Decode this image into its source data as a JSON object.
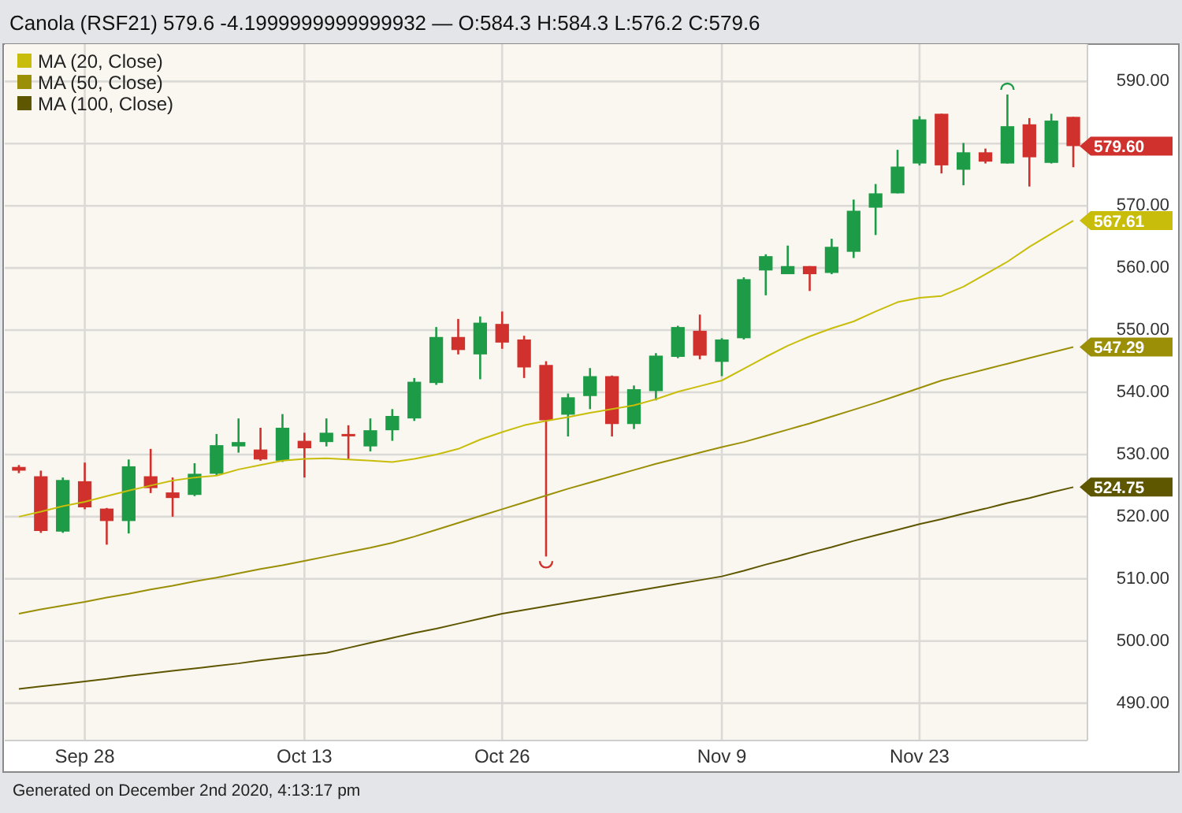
{
  "chart_data": {
    "type": "candlestick",
    "title": "Canola (RSF21) 579.6 -4.1999999999999932 — O:584.3 H:584.3 L:576.2 C:579.6",
    "categories": [
      null,
      null,
      null,
      "Sep 28",
      null,
      null,
      null,
      null,
      null,
      null,
      null,
      null,
      null,
      "Oct 13",
      null,
      null,
      null,
      null,
      null,
      null,
      null,
      null,
      "Oct 26",
      null,
      null,
      null,
      null,
      null,
      null,
      null,
      null,
      null,
      "Nov 9",
      null,
      null,
      null,
      null,
      null,
      null,
      null,
      null,
      "Nov 23",
      null,
      null,
      null,
      null,
      null,
      null,
      null
    ],
    "ohlc": [
      [
        528.0,
        528.3,
        527.0,
        527.4
      ],
      [
        526.5,
        527.4,
        517.4,
        517.7
      ],
      [
        517.6,
        526.3,
        517.4,
        525.9
      ],
      [
        525.7,
        528.7,
        521.2,
        521.5
      ],
      [
        521.3,
        521.4,
        515.5,
        519.3
      ],
      [
        519.3,
        529.2,
        517.3,
        528.1
      ],
      [
        526.5,
        530.9,
        523.8,
        524.6
      ],
      [
        523.9,
        526.3,
        520.0,
        523.0
      ],
      [
        523.5,
        528.6,
        523.3,
        526.9
      ],
      [
        526.9,
        533.3,
        526.7,
        531.5
      ],
      [
        531.3,
        535.8,
        530.3,
        532.0
      ],
      [
        530.8,
        534.3,
        529.0,
        529.2
      ],
      [
        529.0,
        536.5,
        528.8,
        534.3
      ],
      [
        532.2,
        533.5,
        526.3,
        531.0
      ],
      [
        532.0,
        535.8,
        531.3,
        533.5
      ],
      [
        533.3,
        534.7,
        529.2,
        533.0
      ],
      [
        531.3,
        535.8,
        530.5,
        533.9
      ],
      [
        533.9,
        537.3,
        532.2,
        536.2
      ],
      [
        535.8,
        542.3,
        535.4,
        541.7
      ],
      [
        541.5,
        550.5,
        541.2,
        548.9
      ],
      [
        548.9,
        551.8,
        546.1,
        546.8
      ],
      [
        546.1,
        552.2,
        542.1,
        551.2
      ],
      [
        551.0,
        553.0,
        547.0,
        548.0
      ],
      [
        548.5,
        549.1,
        542.3,
        544.0
      ],
      [
        544.4,
        545.0,
        513.6,
        535.5
      ],
      [
        536.4,
        539.8,
        532.9,
        539.2
      ],
      [
        539.4,
        543.9,
        537.3,
        542.6
      ],
      [
        542.6,
        542.7,
        532.9,
        534.9
      ],
      [
        534.9,
        541.1,
        534.1,
        540.5
      ],
      [
        540.2,
        546.3,
        538.7,
        545.9
      ],
      [
        545.7,
        550.7,
        545.5,
        550.5
      ],
      [
        549.9,
        552.5,
        545.3,
        545.9
      ],
      [
        544.9,
        548.7,
        542.6,
        548.5
      ],
      [
        548.7,
        558.5,
        548.5,
        558.2
      ],
      [
        559.6,
        562.2,
        555.6,
        561.9
      ],
      [
        559.0,
        563.6,
        559.0,
        560.3
      ],
      [
        560.3,
        560.3,
        556.3,
        559.0
      ],
      [
        559.2,
        564.7,
        559.0,
        563.4
      ],
      [
        562.6,
        571.0,
        561.6,
        569.2
      ],
      [
        569.7,
        573.5,
        565.3,
        572.0
      ],
      [
        572.0,
        579.0,
        572.0,
        576.3
      ],
      [
        576.8,
        584.4,
        576.5,
        583.9
      ],
      [
        584.8,
        584.8,
        575.2,
        576.5
      ],
      [
        575.8,
        580.1,
        573.3,
        578.6
      ],
      [
        578.6,
        579.2,
        576.8,
        577.1
      ],
      [
        576.8,
        587.9,
        576.8,
        582.8
      ],
      [
        583.1,
        584.1,
        573.1,
        577.8
      ],
      [
        576.9,
        584.8,
        576.8,
        583.7
      ],
      [
        584.3,
        584.3,
        576.2,
        579.6
      ]
    ],
    "value_labels": [
      null,
      null,
      null,
      null,
      null,
      null,
      null,
      null,
      null,
      null,
      null,
      null,
      null,
      null,
      null,
      null,
      null,
      null,
      null,
      null,
      null,
      null,
      null,
      null,
      null,
      null,
      null,
      null,
      null,
      null,
      null,
      null,
      null,
      null,
      null,
      null,
      null,
      null,
      null,
      null,
      null,
      null,
      null,
      null,
      null,
      null,
      null,
      null,
      "579.60"
    ],
    "colors": [
      "#d0312d",
      "#d0312d",
      "#1e9b46",
      "#d0312d",
      "#d0312d",
      "#1e9b46",
      "#d0312d",
      "#d0312d",
      "#1e9b46",
      "#1e9b46",
      "#1e9b46",
      "#d0312d",
      "#1e9b46",
      "#d0312d",
      "#1e9b46",
      "#d0312d",
      "#1e9b46",
      "#1e9b46",
      "#1e9b46",
      "#1e9b46",
      "#d0312d",
      "#1e9b46",
      "#d0312d",
      "#d0312d",
      "#d0312d",
      "#1e9b46",
      "#1e9b46",
      "#d0312d",
      "#1e9b46",
      "#1e9b46",
      "#1e9b46",
      "#d0312d",
      "#1e9b46",
      "#1e9b46",
      "#1e9b46",
      "#1e9b46",
      "#d0312d",
      "#1e9b46",
      "#1e9b46",
      "#1e9b46",
      "#1e9b46",
      "#1e9b46",
      "#d0312d",
      "#1e9b46",
      "#d0312d",
      "#1e9b46",
      "#d0312d",
      "#1e9b46",
      "#d0312d"
    ],
    "series": [
      {
        "type": "line",
        "name": "MA (20, Close)",
        "color": "#c8bd0a",
        "values": [
          520.0,
          520.8,
          521.7,
          522.4,
          523.3,
          524.2,
          525.0,
          525.8,
          526.3,
          526.6,
          527.6,
          528.3,
          529.0,
          529.3,
          529.4,
          529.2,
          529.0,
          528.8,
          529.3,
          530.0,
          530.9,
          532.4,
          533.6,
          534.7,
          535.4,
          536.0,
          536.7,
          537.3,
          537.9,
          538.9,
          540.1,
          541.0,
          541.9,
          543.8,
          545.7,
          547.5,
          549.0,
          550.3,
          551.4,
          553.0,
          554.5,
          555.2,
          555.5,
          557.0,
          559.0,
          561.0,
          563.4,
          565.5,
          567.61
        ],
        "value_labels": [
          null,
          null,
          null,
          null,
          null,
          null,
          null,
          null,
          null,
          null,
          null,
          null,
          null,
          null,
          null,
          null,
          null,
          null,
          null,
          null,
          null,
          null,
          null,
          null,
          null,
          null,
          null,
          null,
          null,
          null,
          null,
          null,
          null,
          null,
          null,
          null,
          null,
          null,
          null,
          null,
          null,
          null,
          null,
          null,
          null,
          null,
          null,
          null,
          "567.61"
        ]
      },
      {
        "type": "line",
        "name": "MA (50, Close)",
        "color": "#9a8f06",
        "values": [
          504.4,
          505.1,
          505.7,
          506.3,
          507.0,
          507.6,
          508.3,
          508.9,
          509.6,
          510.2,
          510.9,
          511.6,
          512.2,
          512.9,
          513.6,
          514.3,
          515.0,
          515.8,
          516.8,
          517.9,
          519.0,
          520.1,
          521.2,
          522.3,
          523.4,
          524.5,
          525.5,
          526.5,
          527.5,
          528.5,
          529.4,
          530.3,
          531.2,
          532.0,
          533.0,
          534.0,
          535.0,
          536.1,
          537.2,
          538.3,
          539.5,
          540.7,
          541.9,
          542.8,
          543.7,
          544.6,
          545.5,
          546.4,
          547.29
        ],
        "value_labels": [
          null,
          null,
          null,
          null,
          null,
          null,
          null,
          null,
          null,
          null,
          null,
          null,
          null,
          null,
          null,
          null,
          null,
          null,
          null,
          null,
          null,
          null,
          null,
          null,
          null,
          null,
          null,
          null,
          null,
          null,
          null,
          null,
          null,
          null,
          null,
          null,
          null,
          null,
          null,
          null,
          null,
          null,
          null,
          null,
          null,
          null,
          null,
          null,
          "547.29"
        ]
      },
      {
        "type": "line",
        "name": "MA (100, Close)",
        "color": "#5f5600",
        "values": [
          492.3,
          492.7,
          493.1,
          493.5,
          493.9,
          494.4,
          494.8,
          495.2,
          495.6,
          496.0,
          496.4,
          496.9,
          497.3,
          497.7,
          498.1,
          498.9,
          499.7,
          500.5,
          501.3,
          502.0,
          502.8,
          503.6,
          504.4,
          505.0,
          505.6,
          506.2,
          506.8,
          507.4,
          508.0,
          508.6,
          509.2,
          509.8,
          510.4,
          511.3,
          512.3,
          513.2,
          514.2,
          515.1,
          516.1,
          517.0,
          517.9,
          518.8,
          519.6,
          520.5,
          521.3,
          522.2,
          523.0,
          523.9,
          524.75
        ],
        "value_labels": [
          null,
          null,
          null,
          null,
          null,
          null,
          null,
          null,
          null,
          null,
          null,
          null,
          null,
          null,
          null,
          null,
          null,
          null,
          null,
          null,
          null,
          null,
          null,
          null,
          null,
          null,
          null,
          null,
          null,
          null,
          null,
          null,
          null,
          null,
          null,
          null,
          null,
          null,
          null,
          null,
          null,
          null,
          null,
          null,
          null,
          null,
          null,
          null,
          "524.75"
        ]
      }
    ],
    "ylim": [
      484,
      596
    ],
    "yticks": [
      {
        "value": 490,
        "label": "490.00"
      },
      {
        "value": 500,
        "label": "500.00"
      },
      {
        "value": 510,
        "label": "510.00"
      },
      {
        "value": 520,
        "label": "520.00"
      },
      {
        "value": 530,
        "label": "530.00"
      },
      {
        "value": 540,
        "label": "540.00"
      },
      {
        "value": 550,
        "label": "550.00"
      },
      {
        "value": 560,
        "label": "560.00"
      },
      {
        "value": 570,
        "label": "570.00"
      },
      {
        "value": 580,
        "label": null
      },
      {
        "value": 590,
        "label": "590.00"
      }
    ],
    "grid": true,
    "legend": "top left",
    "annotations": [
      "Generated on December 2nd 2020, 4:13:17 pm"
    ]
  }
}
